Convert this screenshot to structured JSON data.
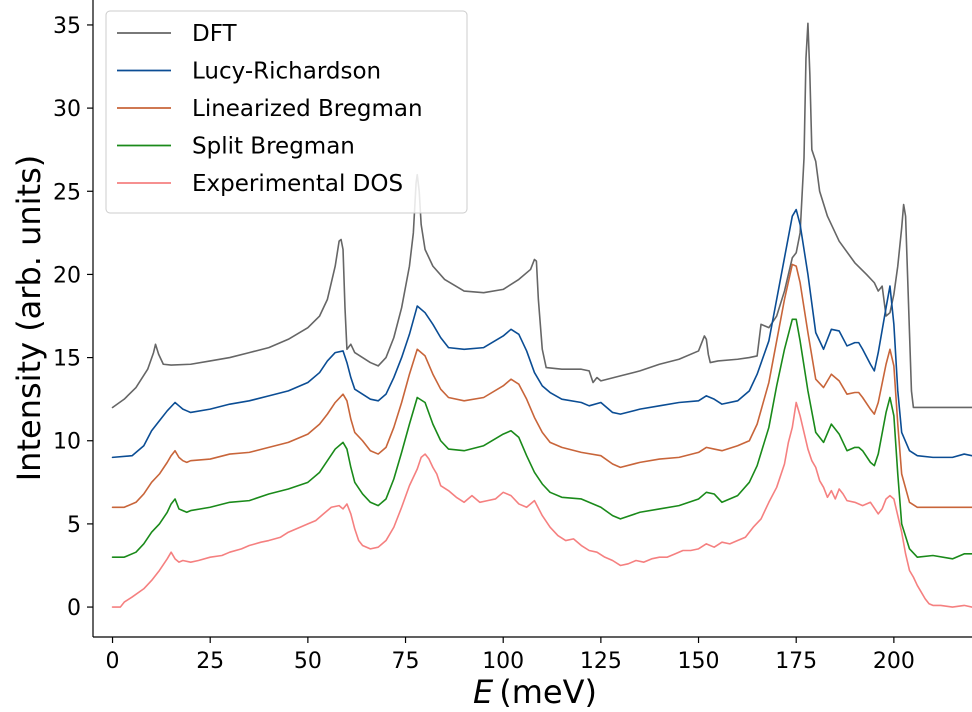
{
  "chart_data": {
    "type": "line",
    "xlabel_symbol": "E",
    "xlabel_unit": "(meV)",
    "ylabel": "Intensity (arb. units)",
    "xlim": [
      -5,
      220
    ],
    "ylim": [
      -1.8,
      36.5
    ],
    "xticks": [
      0,
      25,
      50,
      75,
      100,
      125,
      150,
      175,
      200
    ],
    "yticks": [
      0,
      5,
      10,
      15,
      20,
      25,
      30,
      35
    ],
    "grid": false,
    "legend_position": "top-left",
    "series": [
      {
        "name": "DFT",
        "color": "#666666",
        "x": [
          0,
          3,
          6,
          9,
          10.5,
          11,
          11.8,
          13,
          15,
          20,
          25,
          30,
          35,
          40,
          45,
          50,
          53,
          55,
          57,
          58,
          58.5,
          59,
          59.5,
          60,
          61,
          62,
          64,
          66,
          68,
          70,
          72,
          74,
          76,
          77,
          77.7,
          78,
          78.5,
          79,
          80,
          82,
          85,
          90,
          95,
          100,
          104,
          107,
          108,
          108.5,
          109,
          110,
          111,
          115,
          120,
          122,
          123,
          124,
          125,
          130,
          135,
          140,
          145,
          150,
          151.5,
          152,
          152.5,
          153,
          155,
          160,
          163,
          165,
          166,
          168,
          170,
          172,
          174,
          175,
          176,
          177,
          177.5,
          178,
          178.5,
          179,
          180,
          181,
          183,
          186,
          190,
          193,
          195,
          196,
          197,
          198,
          199,
          200,
          201,
          202,
          202.5,
          203,
          203.5,
          204,
          204.5,
          205,
          210,
          220
        ],
        "y": [
          12,
          12.5,
          13.2,
          14.3,
          15.3,
          15.8,
          15.2,
          14.6,
          14.55,
          14.6,
          14.8,
          15.0,
          15.3,
          15.6,
          16.1,
          16.8,
          17.5,
          18.5,
          20.5,
          22.0,
          22.1,
          21.5,
          18.0,
          15.5,
          15.8,
          15.3,
          15.0,
          14.7,
          14.5,
          15.0,
          16.2,
          18.0,
          20.5,
          22.5,
          25.5,
          26.0,
          25.0,
          23.0,
          21.5,
          20.5,
          19.7,
          19.0,
          18.9,
          19.1,
          19.7,
          20.3,
          20.9,
          20.8,
          18.5,
          15.5,
          14.4,
          14.3,
          14.3,
          14.2,
          13.5,
          13.8,
          13.6,
          13.9,
          14.2,
          14.6,
          14.9,
          15.4,
          16.3,
          16.1,
          15.2,
          14.7,
          14.8,
          14.9,
          15.0,
          15.1,
          17.0,
          16.8,
          17.5,
          19.0,
          21.0,
          21.3,
          22.5,
          27.0,
          33.0,
          35.1,
          32.0,
          27.5,
          26.8,
          25.0,
          23.5,
          22.0,
          20.7,
          20.0,
          19.5,
          19.0,
          19.3,
          17.5,
          17.7,
          18.8,
          20.5,
          22.8,
          24.2,
          23.5,
          20.0,
          16.5,
          13.0,
          12.0,
          12.0,
          12.0
        ]
      },
      {
        "name": "Lucy-Richardson",
        "color": "#0b4d94",
        "x": [
          0,
          5,
          8,
          10,
          12,
          14,
          16,
          17,
          18,
          19,
          20,
          25,
          30,
          35,
          40,
          45,
          50,
          53,
          55,
          57,
          59,
          60,
          61,
          62,
          64,
          66,
          68,
          70,
          72,
          74,
          76,
          78,
          80,
          82,
          84,
          86,
          90,
          95,
          100,
          102,
          104,
          106,
          108,
          110,
          112,
          115,
          120,
          122,
          125,
          128,
          130,
          135,
          140,
          145,
          150,
          152,
          154,
          156,
          160,
          163,
          165,
          168,
          170,
          172,
          174,
          175,
          176,
          178,
          180,
          182,
          184,
          186,
          188,
          190,
          191,
          192,
          194,
          195,
          196,
          198,
          199,
          200,
          201,
          202,
          204,
          206,
          210,
          215,
          218,
          220
        ],
        "y": [
          9,
          9.1,
          9.7,
          10.6,
          11.2,
          11.8,
          12.3,
          12.1,
          11.9,
          11.8,
          11.7,
          11.9,
          12.2,
          12.4,
          12.7,
          13.0,
          13.5,
          14.1,
          14.8,
          15.3,
          15.4,
          14.7,
          13.8,
          13.1,
          12.8,
          12.5,
          12.4,
          12.8,
          13.8,
          15.0,
          16.4,
          18.1,
          17.7,
          17.0,
          16.2,
          15.6,
          15.5,
          15.6,
          16.3,
          16.7,
          16.4,
          15.4,
          14.1,
          13.3,
          12.9,
          12.5,
          12.3,
          12.1,
          12.3,
          11.7,
          11.6,
          11.9,
          12.1,
          12.3,
          12.4,
          12.7,
          12.5,
          12.2,
          12.4,
          13.0,
          14.0,
          16.0,
          18.5,
          21.0,
          23.5,
          23.9,
          23.0,
          20.0,
          16.5,
          15.5,
          16.7,
          16.6,
          15.7,
          15.9,
          15.9,
          15.5,
          14.6,
          14.2,
          15.3,
          18.0,
          19.3,
          17.0,
          13.0,
          10.5,
          9.4,
          9.1,
          9.0,
          9.0,
          9.2,
          9.1
        ]
      },
      {
        "name": "Linearized Bregman",
        "color": "#c8653a",
        "x": [
          0,
          3,
          6,
          8,
          10,
          12,
          14,
          15,
          16,
          17,
          18,
          19,
          20,
          25,
          30,
          35,
          40,
          45,
          50,
          53,
          55,
          57,
          59,
          60,
          61,
          62,
          64,
          66,
          68,
          70,
          72,
          74,
          76,
          78,
          80,
          82,
          84,
          86,
          90,
          95,
          100,
          102,
          104,
          106,
          108,
          110,
          112,
          115,
          120,
          125,
          128,
          130,
          135,
          140,
          145,
          150,
          152,
          154,
          156,
          160,
          163,
          165,
          168,
          170,
          172,
          174,
          175,
          176,
          178,
          180,
          182,
          184,
          186,
          188,
          190,
          191,
          192,
          194,
          195,
          196,
          198,
          199,
          200,
          201,
          202,
          204,
          206,
          210,
          220
        ],
        "y": [
          6,
          6.0,
          6.3,
          6.8,
          7.5,
          8.0,
          8.7,
          9.1,
          9.4,
          9.0,
          8.8,
          8.7,
          8.8,
          8.9,
          9.2,
          9.3,
          9.6,
          9.9,
          10.4,
          11.0,
          11.6,
          12.3,
          12.8,
          12.4,
          11.3,
          10.5,
          10.0,
          9.4,
          9.2,
          9.6,
          10.8,
          12.3,
          14.0,
          15.5,
          15.1,
          14.0,
          13.1,
          12.6,
          12.4,
          12.6,
          13.3,
          13.7,
          13.4,
          12.5,
          11.4,
          10.5,
          9.9,
          9.6,
          9.3,
          9.1,
          8.6,
          8.4,
          8.7,
          8.9,
          9.0,
          9.3,
          9.6,
          9.5,
          9.4,
          9.7,
          10.0,
          11.0,
          13.5,
          16.0,
          18.5,
          20.6,
          20.5,
          19.5,
          16.5,
          13.7,
          13.2,
          14.0,
          13.6,
          12.8,
          12.9,
          12.9,
          12.6,
          11.9,
          11.6,
          12.3,
          14.6,
          15.5,
          14.5,
          11.0,
          8.0,
          6.3,
          6.0,
          6.0,
          6.0
        ]
      },
      {
        "name": "Split Bregman",
        "color": "#1a8a1a",
        "x": [
          0,
          3,
          6,
          8,
          10,
          12,
          14,
          15,
          16,
          17,
          18,
          19,
          20,
          25,
          30,
          35,
          40,
          45,
          50,
          53,
          55,
          57,
          59,
          60,
          61,
          62,
          64,
          66,
          68,
          70,
          72,
          74,
          76,
          78,
          80,
          82,
          84,
          86,
          90,
          95,
          100,
          102,
          104,
          106,
          108,
          110,
          112,
          115,
          120,
          125,
          128,
          130,
          135,
          140,
          145,
          150,
          152,
          154,
          156,
          160,
          163,
          165,
          168,
          170,
          172,
          174,
          175,
          176,
          178,
          180,
          182,
          184,
          186,
          188,
          190,
          191,
          192,
          194,
          195,
          196,
          198,
          199,
          200,
          201,
          202,
          204,
          206,
          210,
          215,
          218,
          220
        ],
        "y": [
          3,
          3.0,
          3.3,
          3.8,
          4.5,
          5.0,
          5.7,
          6.2,
          6.5,
          5.9,
          5.8,
          5.7,
          5.8,
          6.0,
          6.3,
          6.4,
          6.8,
          7.1,
          7.5,
          8.1,
          8.8,
          9.5,
          9.9,
          9.5,
          8.4,
          7.5,
          6.8,
          6.3,
          6.1,
          6.5,
          7.7,
          9.3,
          11.0,
          12.6,
          12.3,
          11.0,
          10.0,
          9.5,
          9.4,
          9.7,
          10.4,
          10.6,
          10.2,
          9.1,
          8.1,
          7.4,
          6.9,
          6.6,
          6.5,
          6.0,
          5.5,
          5.3,
          5.7,
          5.9,
          6.1,
          6.5,
          6.9,
          6.8,
          6.3,
          6.7,
          7.5,
          8.5,
          10.8,
          13.3,
          15.5,
          17.3,
          17.3,
          16.0,
          13.0,
          10.5,
          9.9,
          11.0,
          10.4,
          9.4,
          9.6,
          9.6,
          9.4,
          8.7,
          8.5,
          9.2,
          11.7,
          12.6,
          11.5,
          8.0,
          5.0,
          3.5,
          3.0,
          3.1,
          2.9,
          3.2,
          3.2
        ]
      },
      {
        "name": "Experimental DOS",
        "color": "#f58080",
        "x": [
          0,
          2,
          3,
          5,
          8,
          10,
          12,
          14,
          15,
          16,
          17,
          18,
          20,
          22,
          25,
          28,
          30,
          33,
          35,
          38,
          40,
          43,
          45,
          48,
          50,
          52,
          54,
          56,
          58,
          59,
          60,
          61,
          62,
          63,
          64,
          66,
          68,
          70,
          72,
          74,
          76,
          78,
          79,
          80,
          81,
          82,
          83,
          84,
          86,
          88,
          90,
          92,
          94,
          96,
          98,
          100,
          102,
          104,
          106,
          108,
          110,
          112,
          114,
          116,
          118,
          120,
          122,
          124,
          126,
          128,
          130,
          132,
          134,
          136,
          138,
          140,
          142,
          144,
          146,
          148,
          150,
          152,
          154,
          156,
          158,
          160,
          162,
          164,
          166,
          168,
          170,
          172,
          173,
          174,
          175,
          176,
          177,
          178,
          179,
          180,
          181,
          182,
          183,
          184,
          185,
          186,
          187,
          188,
          190,
          192,
          194,
          196,
          197,
          198,
          199,
          200,
          201,
          202,
          203,
          204,
          205,
          206,
          207,
          208,
          209,
          210,
          212,
          215,
          218,
          220
        ],
        "y": [
          0,
          0,
          0.3,
          0.6,
          1.1,
          1.6,
          2.2,
          2.9,
          3.3,
          2.9,
          2.7,
          2.8,
          2.7,
          2.8,
          3.0,
          3.1,
          3.3,
          3.5,
          3.7,
          3.9,
          4.0,
          4.2,
          4.5,
          4.8,
          5.0,
          5.2,
          5.6,
          6.0,
          6.1,
          5.9,
          6.2,
          5.6,
          4.7,
          4.0,
          3.7,
          3.5,
          3.6,
          4.0,
          4.8,
          6.0,
          7.3,
          8.3,
          9.0,
          9.2,
          8.9,
          8.4,
          8.0,
          7.3,
          7.0,
          6.6,
          6.3,
          6.7,
          6.3,
          6.4,
          6.5,
          6.9,
          6.7,
          6.2,
          6.0,
          6.4,
          5.5,
          4.8,
          4.3,
          4.0,
          4.1,
          3.7,
          3.4,
          3.3,
          3.0,
          2.8,
          2.5,
          2.6,
          2.8,
          2.7,
          2.9,
          3.0,
          3.0,
          3.2,
          3.4,
          3.4,
          3.5,
          3.8,
          3.6,
          3.9,
          3.8,
          4.0,
          4.2,
          4.8,
          5.3,
          6.3,
          7.2,
          8.6,
          9.9,
          10.8,
          12.3,
          11.5,
          10.5,
          9.5,
          8.8,
          8.4,
          7.6,
          7.2,
          6.6,
          7.0,
          6.5,
          7.1,
          6.8,
          6.4,
          6.3,
          6.1,
          6.3,
          5.6,
          5.9,
          6.5,
          6.7,
          6.5,
          5.5,
          4.5,
          3.2,
          2.2,
          1.8,
          1.3,
          0.9,
          0.5,
          0.2,
          0.1,
          0.1,
          0.0,
          0.1,
          0.0
        ]
      }
    ]
  }
}
